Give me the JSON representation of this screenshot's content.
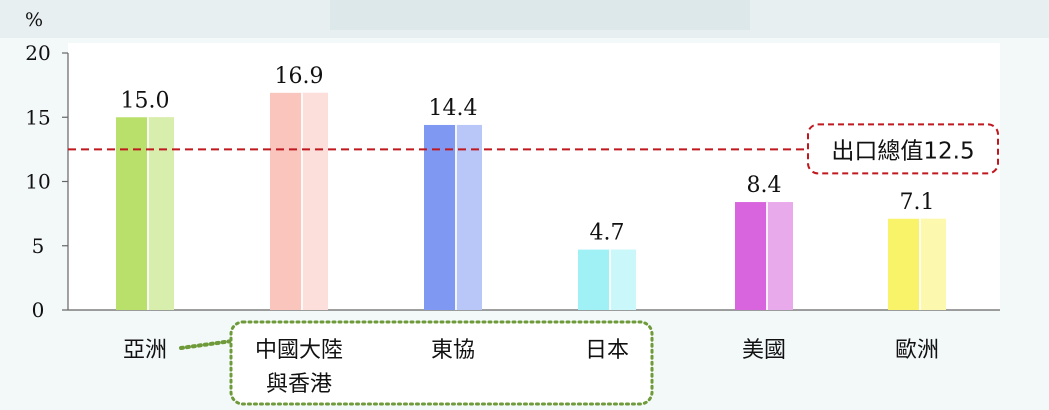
{
  "chart_data": {
    "type": "bar",
    "y_unit_label": "%",
    "ylim": [
      0,
      20
    ],
    "yticks": [
      "0",
      "5",
      "10",
      "15",
      "20"
    ],
    "categories": [
      "亞洲",
      "中國大陸\n與香港",
      "東協",
      "日本",
      "美國",
      "歐洲"
    ],
    "values": [
      15.0,
      16.9,
      14.4,
      4.7,
      8.4,
      7.1
    ],
    "value_labels": [
      "15.0",
      "16.9",
      "14.4",
      "4.7",
      "8.4",
      "7.1"
    ],
    "reference_line": {
      "value": 12.5,
      "label": "出口總值12.5"
    },
    "grid": false,
    "colors": {
      "bars": [
        "#b8e06a",
        "#fac5bc",
        "#7f98f2",
        "#9ff1f6",
        "#d865dd",
        "#f9f36a"
      ],
      "reference_line": "#c0181f",
      "callout_border": "#6e9a3a",
      "axis": "#666666"
    }
  }
}
